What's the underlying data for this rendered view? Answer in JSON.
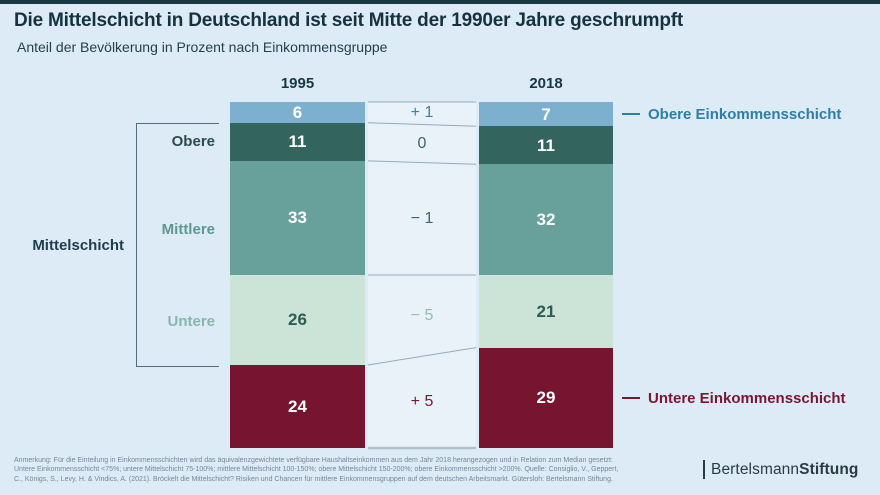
{
  "header": {
    "title": "Die Mittelschicht in Deutschland ist seit Mitte der 1990er Jahre geschrumpft",
    "subtitle": "Anteil der Bevölkerung in Prozent nach Einkommensgruppe"
  },
  "chart_data": {
    "type": "bar",
    "variant": "100-percent-stacked-comparison",
    "unit": "percent of population",
    "categories": [
      "1995",
      "2018"
    ],
    "ylim": [
      0,
      100
    ],
    "series": [
      {
        "key": "obere-einkommensschicht",
        "name": "Obere Einkommensschicht",
        "values": [
          6,
          7
        ],
        "change": "+ 1",
        "color": "#7cb0ce",
        "value_text_color": "#ffffff",
        "change_color": "#3c83aa"
      },
      {
        "key": "obere-mittelschicht",
        "name": "Obere Mittelschicht",
        "values": [
          11,
          11
        ],
        "change": "0",
        "color": "#33655e",
        "value_text_color": "#ffffff",
        "change_color": "#41626d"
      },
      {
        "key": "mittlere-mittelschicht",
        "name": "Mittlere Mittelschicht",
        "values": [
          33,
          32
        ],
        "change": "− 1",
        "color": "#68a19c",
        "value_text_color": "#ffffff",
        "change_color": "#41626d"
      },
      {
        "key": "untere-mittelschicht",
        "name": "Untere Mittelschicht",
        "values": [
          26,
          21
        ],
        "change": "− 5",
        "color": "#cbe4d7",
        "value_text_color": "#2e5b53",
        "change_color": "#92bfb4"
      },
      {
        "key": "untere-einkommensschicht",
        "name": "Untere Einkommensschicht",
        "values": [
          24,
          29
        ],
        "change": "+ 5",
        "color": "#77142f",
        "value_text_color": "#ffffff",
        "change_color": "#7a1632"
      }
    ],
    "legend": [
      {
        "label": "Obere Einkommensschicht",
        "color": "#2e7ea7"
      },
      {
        "label": "Untere Einkommensschicht",
        "color": "#7a1632"
      }
    ]
  },
  "left_labels": {
    "bracket_label": "Mittelschicht",
    "groups": [
      {
        "label": "Obere",
        "color": "#2d4b4e"
      },
      {
        "label": "Mittlere",
        "color": "#5f9893"
      },
      {
        "label": "Untere",
        "color": "#87b7ab"
      }
    ]
  },
  "footnote": {
    "line1": "Anmerkung: Für die Einteilung in Einkommensschichten wird das äquivalenzgewichtete verfügbare Haushaltseinkommen aus dem Jahr 2018 herangezogen und in Relation zum Median gesetzt:",
    "line2": "Untere Einkommensschicht <75%; untere Mittelschicht 75-100%; mittlere Mittelschicht 100-150%; obere Mittelschicht 150-200%; obere Einkommensschicht >200%. Quelle: Consiglio, V., Geppert,",
    "line3": "C., Königs, S., Levy, H. & Vindics, A. (2021). Bröckelt die Mittelschicht? Risiken und Chancen für mittlere Einkommensgruppen auf dem deutschen Arbeitsmarkt. Gütersloh: Bertelsmann Stiftung."
  },
  "logo": {
    "name_regular": "Bertelsmann",
    "name_bold": "Stiftung"
  }
}
